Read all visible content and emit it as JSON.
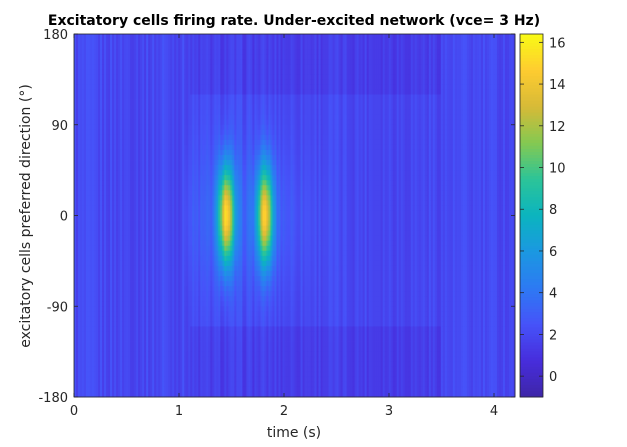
{
  "chart_data": {
    "type": "heatmap",
    "title": "Excitatory cells firing rate. Under-excited network (vce= 3 Hz)",
    "xlabel": "time (s)",
    "ylabel": "excitatory cells preferred direction (°)",
    "xlim": [
      0,
      4.2
    ],
    "ylim": [
      -180,
      180
    ],
    "xticks": [
      "0",
      "1",
      "2",
      "3",
      "4"
    ],
    "yticks": [
      "-180",
      "-90",
      "0",
      "90",
      "180"
    ],
    "colorbar": {
      "range": [
        -1,
        16.4
      ],
      "ticks": [
        "0",
        "2",
        "4",
        "6",
        "8",
        "10",
        "12",
        "14",
        "16"
      ],
      "colormap": "parula"
    },
    "grid": false,
    "structure": {
      "baseline_rate_hz": 2,
      "bumps": [
        {
          "center_time_s": 1.45,
          "center_direction_deg": 0,
          "peak_rate_hz": 14
        },
        {
          "center_time_s": 1.82,
          "center_direction_deg": 0,
          "peak_rate_hz": 13.5
        }
      ],
      "activity_window_s": [
        1.05,
        2.9
      ],
      "lower_rate_region_s": [
        1.1,
        3.5
      ],
      "lower_rate_region_direction_deg": [
        [
          120,
          180
        ],
        [
          -180,
          -110
        ]
      ],
      "background_stripe_times_s": [
        0.85
      ]
    }
  }
}
